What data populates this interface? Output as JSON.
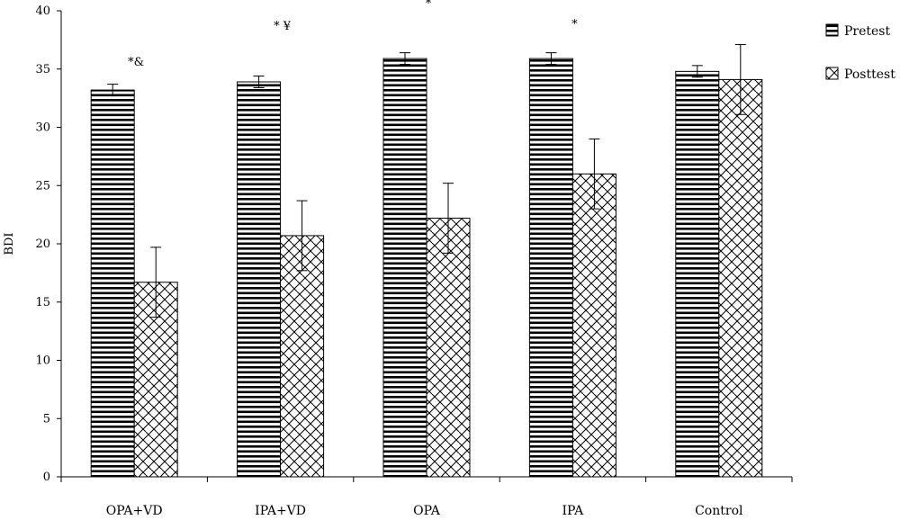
{
  "chart_data": {
    "type": "bar",
    "ylabel": "BDI",
    "ylim": [
      0,
      40
    ],
    "yticks": [
      0,
      5,
      10,
      15,
      20,
      25,
      30,
      35,
      40
    ],
    "categories": [
      "OPA+VD",
      "IPA+VD",
      "OPA",
      "IPA",
      "Control"
    ],
    "series": [
      {
        "name": "Pretest",
        "pattern": "horizontal-stripes",
        "values": [
          33.2,
          33.9,
          35.9,
          35.9,
          34.8
        ],
        "errors": [
          0.5,
          0.5,
          0.5,
          0.5,
          0.5
        ]
      },
      {
        "name": "Posttest",
        "pattern": "diagonal-weave",
        "values": [
          16.7,
          20.7,
          22.2,
          26.0,
          34.1
        ],
        "errors": [
          3.0,
          3.0,
          3.0,
          3.0,
          3.0
        ]
      }
    ],
    "annotations": [
      "*&",
      "*  ¥",
      "*",
      "*",
      ""
    ],
    "legend_position": "top-right",
    "grid": false,
    "colors": {
      "bar_fill": "#ffffff",
      "pattern": "#000000",
      "axis": "#000000"
    }
  }
}
